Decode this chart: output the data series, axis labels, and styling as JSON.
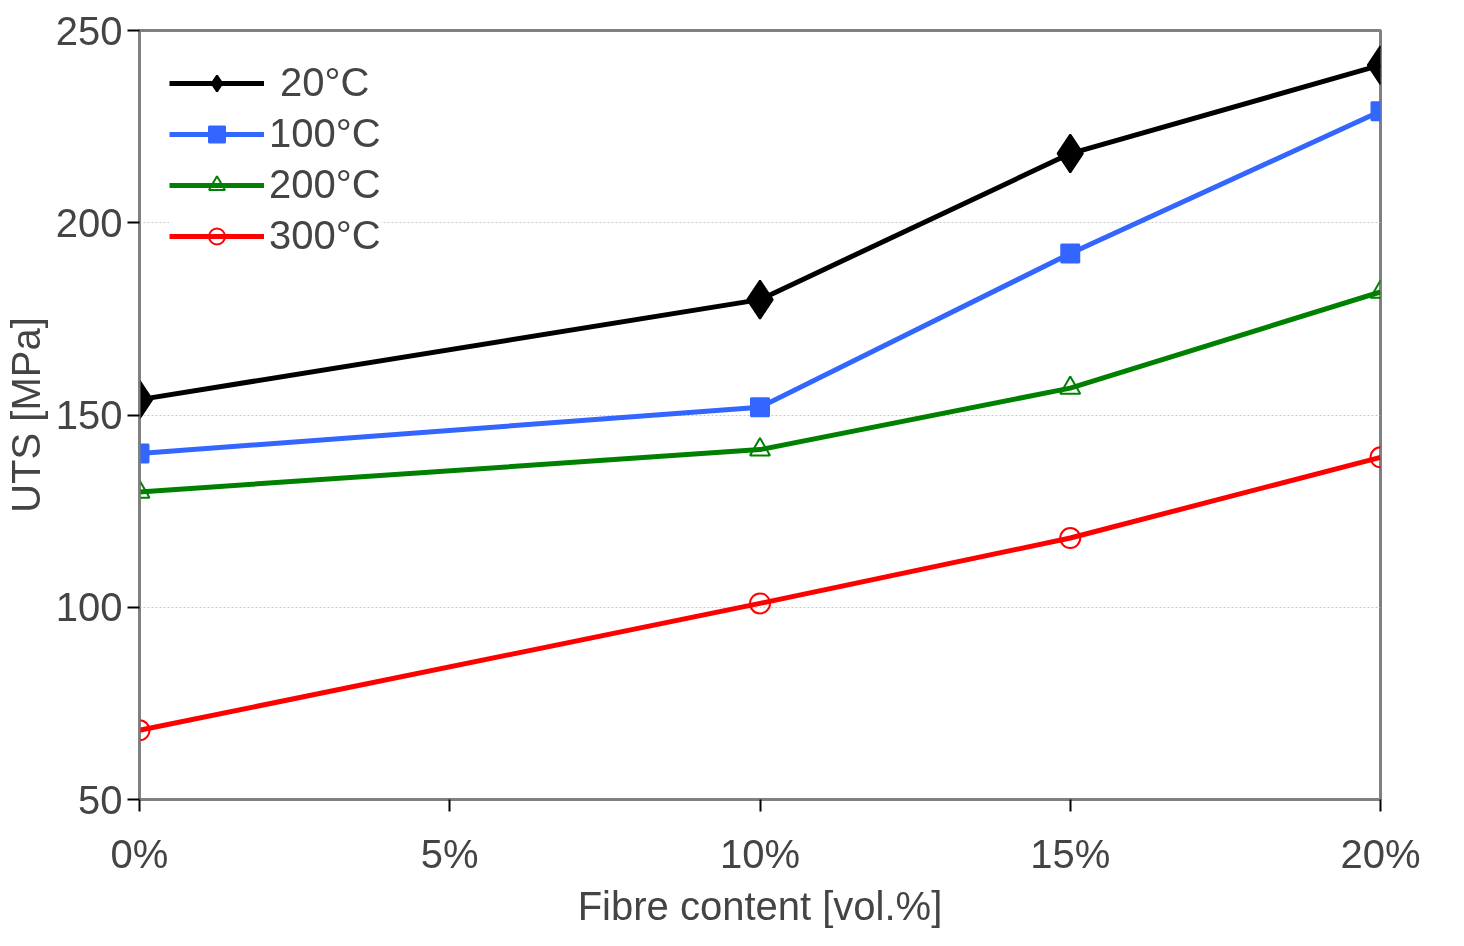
{
  "chart_data": {
    "type": "line",
    "xlabel": "Fibre content [vol.%]",
    "ylabel": "UTS [MPa]",
    "x": [
      0,
      10,
      15,
      20
    ],
    "series": [
      {
        "name": " 20°C",
        "color": "#000000",
        "marker": "diamond",
        "values": [
          154,
          180,
          218,
          241
        ]
      },
      {
        "name": "100°C",
        "color": "#3366ff",
        "marker": "square",
        "values": [
          140,
          152,
          192,
          229
        ]
      },
      {
        "name": "200°C",
        "color": "#008000",
        "marker": "triangle",
        "values": [
          130,
          141,
          157,
          182
        ]
      },
      {
        "name": "300°C",
        "color": "#ff0000",
        "marker": "circle",
        "values": [
          68,
          101,
          118,
          139
        ]
      }
    ],
    "xlim": [
      0,
      20
    ],
    "xticks": [
      {
        "value": 0,
        "label": "0%"
      },
      {
        "value": 5,
        "label": "5%"
      },
      {
        "value": 10,
        "label": "10%"
      },
      {
        "value": 15,
        "label": "15%"
      },
      {
        "value": 20,
        "label": "20%"
      }
    ],
    "ylim": [
      50,
      250
    ],
    "yticks": [
      50,
      100,
      150,
      200,
      250
    ],
    "grid": "y",
    "legend": "top left",
    "line_style": "solid"
  }
}
